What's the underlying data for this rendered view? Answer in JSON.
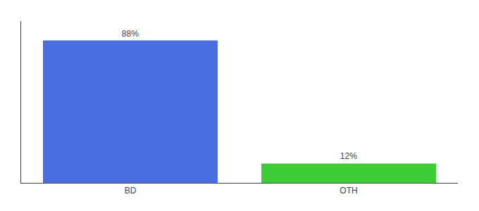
{
  "chart_data": {
    "type": "bar",
    "categories": [
      "BD",
      "OTH"
    ],
    "values": [
      88,
      12
    ],
    "value_labels": [
      "88%",
      "12%"
    ],
    "colors": [
      "#4a6ee0",
      "#3dcc35"
    ],
    "ylim": [
      0,
      100
    ],
    "data_labels": true,
    "tick_labels": "x",
    "grid": false
  }
}
